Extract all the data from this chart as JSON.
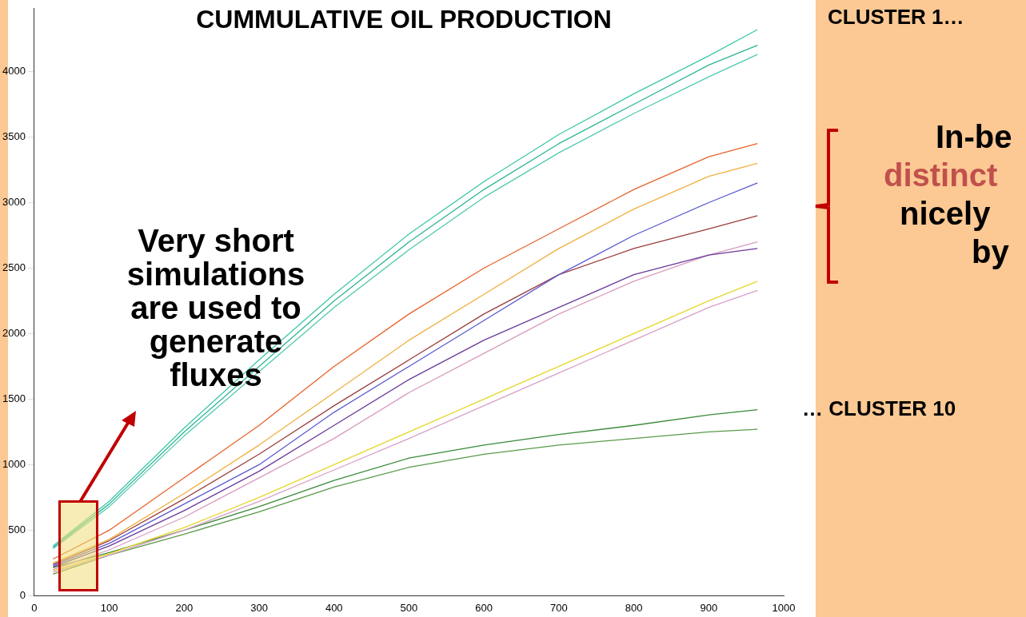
{
  "chart_data": {
    "type": "line",
    "title": "CUMMULATIVE OIL PRODUCTION",
    "x": [
      25,
      100,
      200,
      300,
      400,
      500,
      600,
      700,
      800,
      900,
      965
    ],
    "series": [
      {
        "color": "#3cc8a8",
        "values": [
          380,
          720,
          1280,
          1800,
          2300,
          2760,
          3160,
          3520,
          3830,
          4120,
          4320
        ]
      },
      {
        "color": "#2fb596",
        "values": [
          370,
          700,
          1250,
          1750,
          2250,
          2700,
          3100,
          3450,
          3750,
          4050,
          4200
        ]
      },
      {
        "color": "#52c9b0",
        "values": [
          360,
          680,
          1220,
          1710,
          2200,
          2640,
          3040,
          3380,
          3680,
          3960,
          4130
        ]
      },
      {
        "color": "#e8622a",
        "values": [
          280,
          500,
          900,
          1300,
          1750,
          2150,
          2500,
          2800,
          3100,
          3350,
          3450
        ]
      },
      {
        "color": "#f0b040",
        "values": [
          250,
          430,
          780,
          1150,
          1550,
          1950,
          2300,
          2650,
          2950,
          3200,
          3300
        ]
      },
      {
        "color": "#5a5ad0",
        "values": [
          230,
          400,
          700,
          1000,
          1400,
          1750,
          2100,
          2450,
          2750,
          3000,
          3150
        ]
      },
      {
        "color": "#9b3c3c",
        "values": [
          240,
          420,
          740,
          1080,
          1450,
          1800,
          2150,
          2450,
          2650,
          2800,
          2900
        ]
      },
      {
        "color": "#6a3a9a",
        "values": [
          220,
          380,
          650,
          950,
          1300,
          1650,
          1950,
          2200,
          2450,
          2600,
          2650
        ]
      },
      {
        "color": "#d89ac0",
        "values": [
          200,
          350,
          600,
          900,
          1200,
          1550,
          1850,
          2150,
          2400,
          2600,
          2700
        ]
      },
      {
        "color": "#e6d62a",
        "values": [
          190,
          320,
          520,
          750,
          1000,
          1250,
          1500,
          1750,
          2000,
          2250,
          2400
        ]
      },
      {
        "color": "#d8a0c8",
        "values": [
          180,
          310,
          500,
          720,
          960,
          1200,
          1450,
          1700,
          1950,
          2200,
          2330
        ]
      },
      {
        "color": "#3a8a3a",
        "values": [
          215,
          330,
          500,
          680,
          880,
          1050,
          1150,
          1230,
          1300,
          1380,
          1420
        ]
      },
      {
        "color": "#5a9a4a",
        "values": [
          165,
          310,
          470,
          640,
          830,
          980,
          1080,
          1150,
          1200,
          1250,
          1270
        ]
      }
    ],
    "xlim": [
      0,
      1000
    ],
    "xticks": [
      0,
      100,
      200,
      300,
      400,
      500,
      600,
      700,
      800,
      900,
      1000
    ],
    "ylim": [
      0,
      4480
    ],
    "yticks": [
      0,
      500,
      1000,
      1500,
      2000,
      2500,
      3000,
      3500,
      4000
    ],
    "grid": false,
    "legend": false,
    "marker": "none",
    "line_style": "solid",
    "annotations": [
      "Very short simulations are used to generate fluxes",
      "CLUSTER 1…",
      "… CLUSTER 10",
      "In-be",
      "distinct",
      "nicely",
      "by"
    ]
  }
}
